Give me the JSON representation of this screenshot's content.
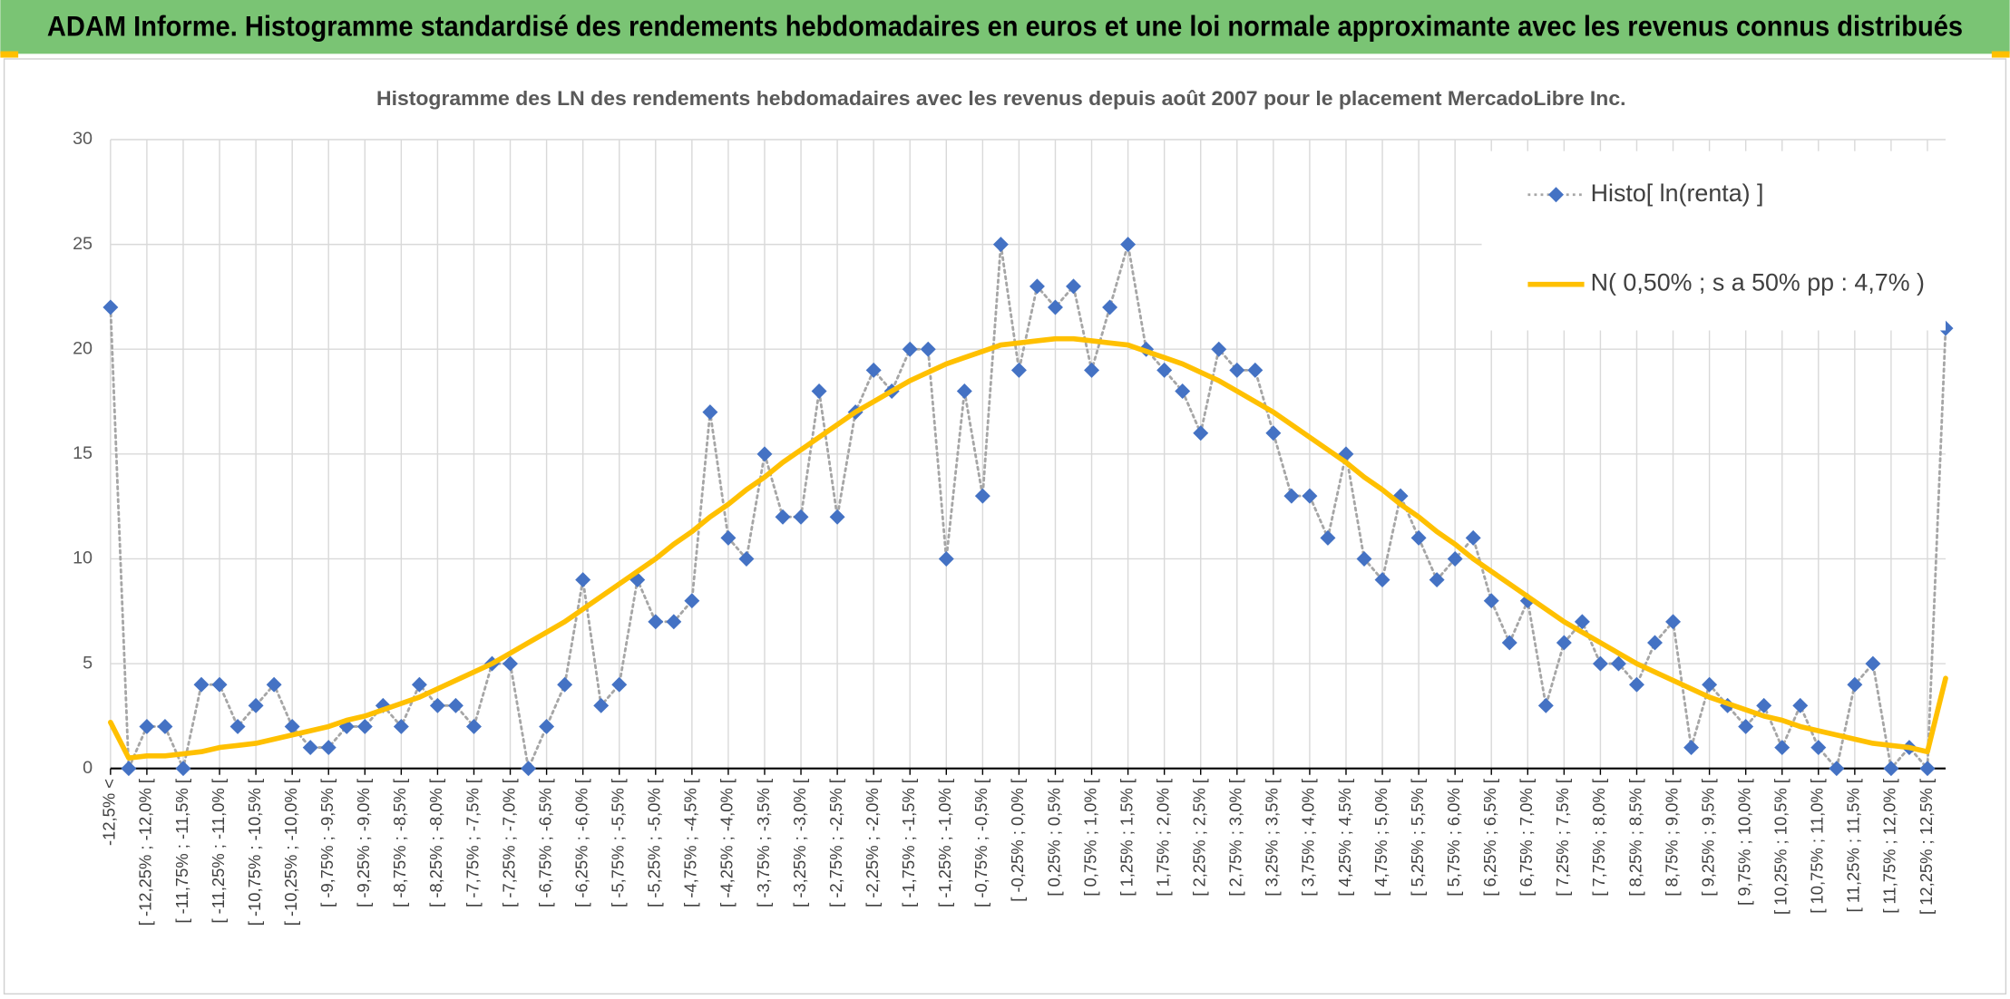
{
  "chart_data": {
    "type": "line",
    "title": "ADAM Informe. Histogramme standardisé des rendements hebdomadaires en euros et une loi normale approximante avec les revenus connus distribués",
    "subtitle": "Histogramme des LN des rendements hebdomadaires avec les revenus depuis août 2007 pour le placement MercadoLibre Inc.",
    "categories": [
      "-12,5% <",
      null,
      "[ -12,25% ; -12,0% [",
      null,
      "[ -11,75% ; -11,5% [",
      null,
      "[ -11,25% ; -11,0% [",
      null,
      "[ -10,75% ; -10,5% [",
      null,
      "[ -10,25% ; -10,0% [",
      null,
      "[ -9,75% ; -9,5% [",
      null,
      "[ -9,25% ; -9,0% [",
      null,
      "[ -8,75% ; -8,5% [",
      null,
      "[ -8,25% ; -8,0% [",
      null,
      "[ -7,75% ; -7,5% [",
      null,
      "[ -7,25% ; -7,0% [",
      null,
      "[ -6,75% ; -6,5% [",
      null,
      "[ -6,25% ; -6,0% [",
      null,
      "[ -5,75% ; -5,5% [",
      null,
      "[ -5,25% ; -5,0% [",
      null,
      "[ -4,75% ; -4,5% [",
      null,
      "[ -4,25% ; -4,0% [",
      null,
      "[ -3,75% ; -3,5% [",
      null,
      "[ -3,25% ; -3,0% [",
      null,
      "[ -2,75% ; -2,5% [",
      null,
      "[ -2,25% ; -2,0% [",
      null,
      "[ -1,75% ; -1,5% [",
      null,
      "[ -1,25% ; -1,0% [",
      null,
      "[ -0,75% ; -0,5% [",
      null,
      "[ -0,25% ; 0,0% [",
      null,
      "[ 0,25% ; 0,5% [",
      null,
      "[ 0,75% ; 1,0% [",
      null,
      "[ 1,25% ; 1,5% [",
      null,
      "[ 1,75% ; 2,0% [",
      null,
      "[ 2,25% ; 2,5% [",
      null,
      "[ 2,75% ; 3,0% [",
      null,
      "[ 3,25% ; 3,5% [",
      null,
      "[ 3,75% ; 4,0% [",
      null,
      "[ 4,25% ; 4,5% [",
      null,
      "[ 4,75% ; 5,0% [",
      null,
      "[ 5,25% ; 5,5% [",
      null,
      "[ 5,75% ; 6,0% [",
      null,
      "[ 6,25% ; 6,5% [",
      null,
      "[ 6,75% ; 7,0% [",
      null,
      "[ 7,25% ; 7,5% [",
      null,
      "[ 7,75% ; 8,0% [",
      null,
      "[ 8,25% ; 8,5% [",
      null,
      "[ 8,75% ; 9,0% [",
      null,
      "[ 9,25% ; 9,5% [",
      null,
      "[ 9,75% ; 10,0% [",
      null,
      "[ 10,25% ; 10,5% [",
      null,
      "[ 10,75% ; 11,0% [",
      null,
      "[ 11,25% ; 11,5% [",
      null,
      "[ 11,75% ; 12,0% [",
      null,
      "[ 12,25% ; 12,5% [",
      null
    ],
    "series": [
      {
        "name": "Histo[ ln(renta) ]",
        "color": "#4472c4",
        "line_color": "#a6a6a6",
        "marker": "diamond",
        "line_style": "dotted",
        "values": [
          22,
          0,
          2,
          2,
          0,
          4,
          4,
          2,
          3,
          4,
          2,
          1,
          1,
          2,
          2,
          3,
          2,
          4,
          3,
          3,
          2,
          5,
          5,
          0,
          2,
          4,
          9,
          3,
          4,
          9,
          7,
          7,
          8,
          17,
          11,
          10,
          15,
          12,
          12,
          18,
          12,
          17,
          19,
          18,
          20,
          20,
          10,
          18,
          13,
          25,
          19,
          23,
          22,
          23,
          19,
          22,
          25,
          20,
          19,
          18,
          16,
          20,
          19,
          19,
          16,
          13,
          13,
          11,
          15,
          10,
          9,
          13,
          11,
          9,
          10,
          11,
          8,
          6,
          8,
          3,
          6,
          7,
          5,
          5,
          4,
          6,
          7,
          1,
          4,
          3,
          2,
          3,
          1,
          3,
          1,
          0,
          4,
          5,
          0,
          1,
          0,
          21
        ]
      },
      {
        "name": "N( 0,50% ; s a 50% pp : 4,7% )",
        "color": "#ffc000",
        "line_style": "solid",
        "values": [
          2.2,
          0.5,
          0.6,
          0.6,
          0.7,
          0.8,
          1.0,
          1.1,
          1.2,
          1.4,
          1.6,
          1.8,
          2.0,
          2.3,
          2.5,
          2.8,
          3.1,
          3.4,
          3.8,
          4.2,
          4.6,
          5.0,
          5.5,
          6.0,
          6.5,
          7.0,
          7.6,
          8.2,
          8.8,
          9.4,
          10.0,
          10.7,
          11.3,
          12.0,
          12.6,
          13.3,
          13.9,
          14.6,
          15.2,
          15.8,
          16.4,
          17.0,
          17.5,
          18.0,
          18.5,
          18.9,
          19.3,
          19.6,
          19.9,
          20.2,
          20.3,
          20.4,
          20.5,
          20.5,
          20.4,
          20.3,
          20.2,
          19.9,
          19.6,
          19.3,
          18.9,
          18.5,
          18.0,
          17.5,
          17.0,
          16.4,
          15.8,
          15.2,
          14.6,
          13.9,
          13.3,
          12.6,
          12.0,
          11.3,
          10.7,
          10.0,
          9.4,
          8.8,
          8.2,
          7.6,
          7.0,
          6.5,
          6.0,
          5.5,
          5.0,
          4.6,
          4.2,
          3.8,
          3.4,
          3.1,
          2.8,
          2.5,
          2.3,
          2.0,
          1.8,
          1.6,
          1.4,
          1.2,
          1.1,
          1.0,
          0.8,
          4.3
        ]
      }
    ],
    "ylim": [
      0,
      30
    ],
    "yticks": [
      0,
      5,
      10,
      15,
      20,
      25,
      30
    ],
    "grid": true,
    "legend": "top-right",
    "header_color": "#7ac474"
  }
}
